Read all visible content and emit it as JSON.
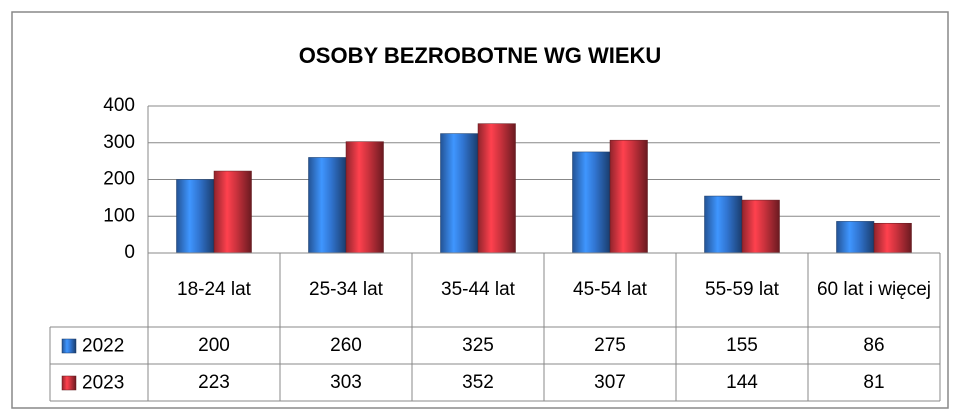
{
  "chart_data": {
    "type": "bar",
    "title": "OSOBY BEZROBOTNE WG WIEKU",
    "categories": [
      "18-24 lat",
      "25-34 lat",
      "35-44 lat",
      "45-54 lat",
      "55-59 lat",
      "60 lat i więcej"
    ],
    "series": [
      {
        "name": "2022",
        "color": "#2f6fc7",
        "values": [
          200,
          260,
          325,
          275,
          155,
          86
        ]
      },
      {
        "name": "2023",
        "color": "#c0303a",
        "values": [
          223,
          303,
          352,
          307,
          144,
          81
        ]
      }
    ],
    "ylim": [
      0,
      400
    ],
    "yticks": [
      0,
      100,
      200,
      300,
      400
    ],
    "grid": true
  }
}
